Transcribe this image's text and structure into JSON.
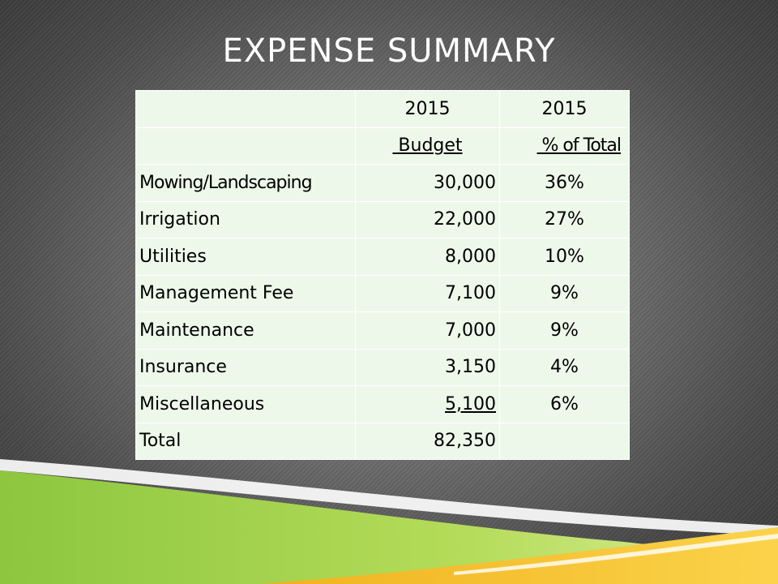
{
  "title": "EXPENSE SUMMARY",
  "table": {
    "header_row1": [
      "",
      "2015",
      "2015"
    ],
    "header_row2": [
      "",
      " Budget",
      " % of Total"
    ],
    "rows": [
      {
        "label": "Mowing/Landscaping",
        "budget": "30,000",
        "pct": "36%"
      },
      {
        "label": "Irrigation",
        "budget": "22,000",
        "pct": "27%"
      },
      {
        "label": "Utilities",
        "budget": "8,000",
        "pct": "10%"
      },
      {
        "label": "Management Fee",
        "budget": "7,100",
        "pct": "9%"
      },
      {
        "label": "Maintenance",
        "budget": "7,000",
        "pct": "9%"
      },
      {
        "label": "Insurance",
        "budget": "3,150",
        "pct": "4%"
      },
      {
        "label": "Miscellaneous",
        "budget": "5,100",
        "pct": "6%"
      },
      {
        "label": "Total",
        "budget": "82,350",
        "pct": ""
      }
    ]
  },
  "colors": {
    "table_bg": "#eef8ea",
    "green": "#8dc63f",
    "yellow": "#f7c325"
  }
}
